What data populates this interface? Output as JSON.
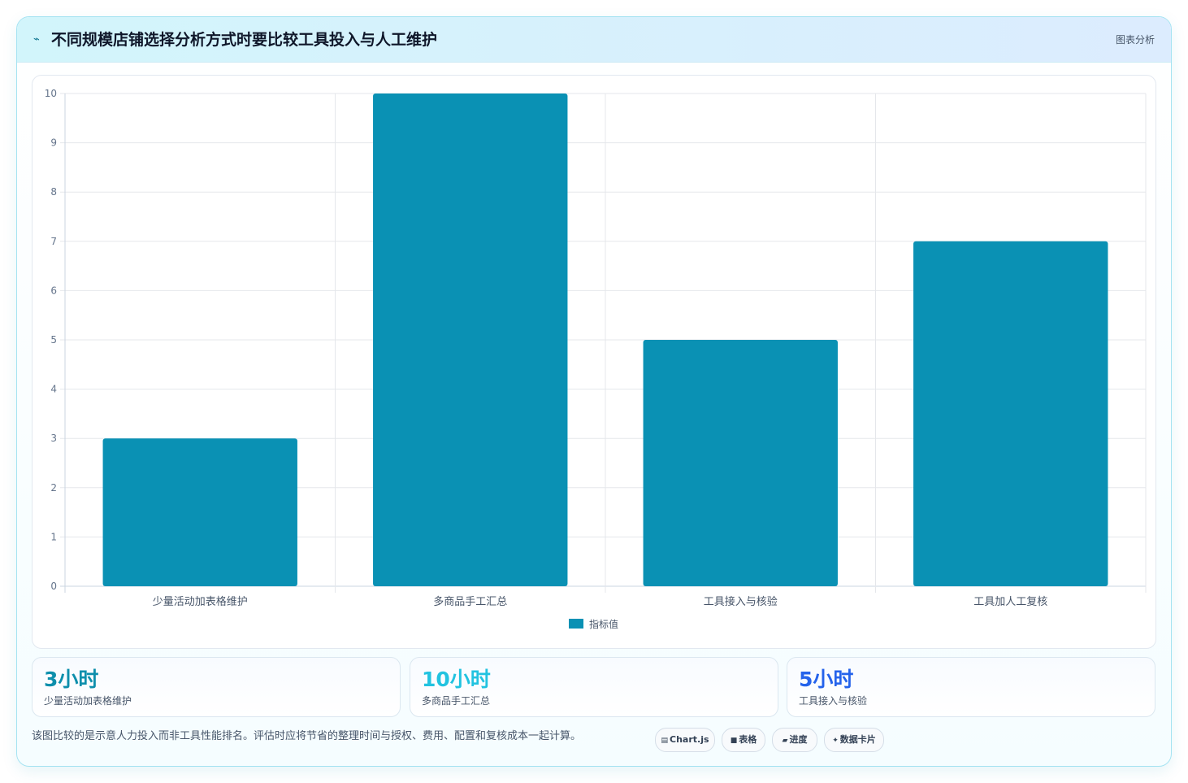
{
  "header": {
    "title": "不同规模店铺选择分析方式时要比较工具投入与人工维护",
    "tag": "图表分析",
    "icon": "bolt-icon"
  },
  "chart_data": {
    "type": "bar",
    "categories": [
      "少量活动加表格维护",
      "多商品手工汇总",
      "工具接入与核验",
      "工具加人工复核"
    ],
    "series": [
      {
        "name": "指标值",
        "values": [
          3,
          10,
          5,
          7
        ],
        "color": "#0a91b4"
      }
    ],
    "ylim": [
      0,
      10
    ],
    "yticks": [
      0,
      1,
      2,
      3,
      4,
      5,
      6,
      7,
      8,
      9,
      10
    ],
    "grid": true,
    "legend": "bottom-center",
    "title": "",
    "xlabel": "",
    "ylabel": ""
  },
  "stats": [
    {
      "value": "3小时",
      "label": "少量活动加表格维护",
      "color": "#0e8fac"
    },
    {
      "value": "10小时",
      "label": "多商品手工汇总",
      "color": "#22c3e0"
    },
    {
      "value": "5小时",
      "label": "工具接入与核验",
      "color": "#2563eb"
    }
  ],
  "note": "该图比较的是示意人力投入而非工具性能排名。评估时应将节省的整理时间与授权、费用、配置和复核成本一起计算。",
  "pills": [
    {
      "label": "Chart.js",
      "icon": "chart-icon",
      "glyph": "▤"
    },
    {
      "label": "表格",
      "icon": "table-icon",
      "glyph": "■"
    },
    {
      "label": "进度",
      "icon": "progress-icon",
      "glyph": "▰"
    },
    {
      "label": "数据卡片",
      "icon": "sparkle-icon",
      "glyph": "✦"
    }
  ]
}
